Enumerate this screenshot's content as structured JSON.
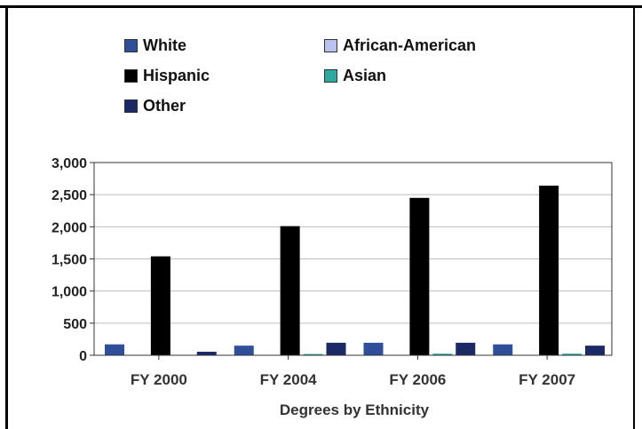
{
  "chart_data": {
    "type": "bar",
    "categories": [
      "FY 2000",
      "FY 2004",
      "FY 2006",
      "FY 2007"
    ],
    "series": [
      {
        "name": "White",
        "color": "#2f4f9a",
        "values": [
          170,
          150,
          195,
          170
        ]
      },
      {
        "name": "African-American",
        "color": "#b9c3ee",
        "values": [
          0,
          0,
          0,
          0
        ]
      },
      {
        "name": "Hispanic",
        "color": "#000000",
        "values": [
          1540,
          2010,
          2450,
          2640
        ]
      },
      {
        "name": "Asian",
        "color": "#2fa9a0",
        "values": [
          0,
          20,
          25,
          25
        ]
      },
      {
        "name": "Other",
        "color": "#1b2a66",
        "values": [
          55,
          195,
          195,
          150
        ]
      }
    ],
    "ylim": [
      0,
      3000
    ],
    "yticks": [
      "3,000",
      "2,500",
      "2,000",
      "1,500",
      "1,000",
      "500",
      "0"
    ],
    "ytick_values": [
      3000,
      2500,
      2000,
      1500,
      1000,
      500,
      0
    ],
    "xlabel": "Degrees by Ethnicity",
    "ylabel": "",
    "grid": true,
    "legend_position": "top"
  }
}
